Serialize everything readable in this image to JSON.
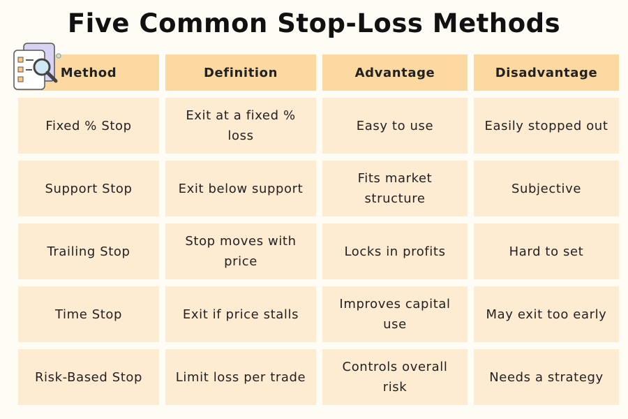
{
  "title": "Five Common Stop-Loss Methods",
  "table": {
    "header": [
      "Method",
      "Definition",
      "Advantage",
      "Disadvantage"
    ],
    "rows": [
      [
        "Fixed % Stop",
        "Exit at a fixed % loss",
        "Easy to use",
        "Easily stopped out"
      ],
      [
        "Support Stop",
        "Exit below support",
        "Fits market structure",
        "Subjective"
      ],
      [
        "Trailing Stop",
        "Stop moves with price",
        "Locks in profits",
        "Hard to set"
      ],
      [
        "Time Stop",
        "Exit if price stalls",
        "Improves capital use",
        "May exit too early"
      ],
      [
        "Risk-Based Stop",
        "Limit loss per trade",
        "Controls overall risk",
        "Needs a strategy"
      ]
    ]
  }
}
